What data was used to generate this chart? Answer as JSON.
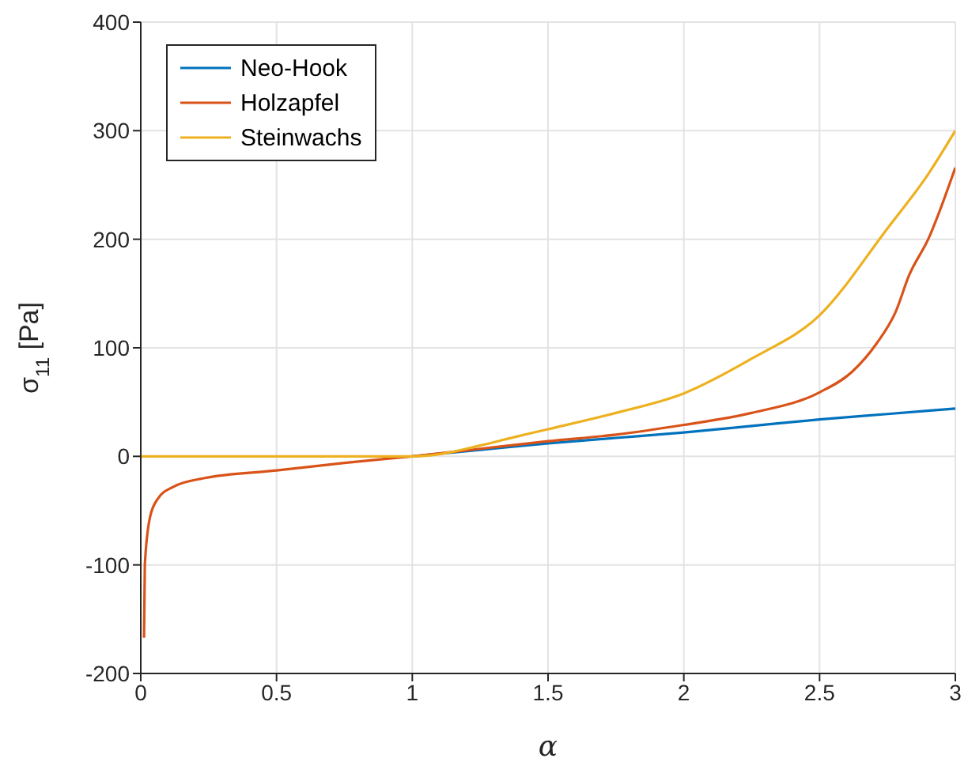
{
  "chart_data": {
    "type": "line",
    "xlabel": "α",
    "ylabel": "σ$_{11}$ [Pa]",
    "xlim": [
      0,
      3
    ],
    "xticks": [
      0,
      0.5,
      1,
      1.5,
      2,
      2.5,
      3
    ],
    "ylim": [
      -200,
      400
    ],
    "yticks": [
      -200,
      -100,
      0,
      100,
      200,
      300,
      400
    ],
    "grid": true,
    "legend": "top left",
    "marker": "none",
    "line_style": "solid",
    "series": [
      {
        "name": "Neo-Hook",
        "color": "#0072bd",
        "x": [
          1,
          1.25,
          1.5,
          1.75,
          2,
          2.25,
          2.5,
          2.75,
          3
        ],
        "values": [
          0,
          6,
          12,
          17,
          22,
          28,
          34,
          39,
          44
        ]
      },
      {
        "name": "Holzapfel",
        "color": "#d95319",
        "x": [
          0.012,
          0.015,
          0.034,
          0.063,
          0.12,
          0.235,
          0.5,
          0.75,
          1,
          1.25,
          1.5,
          1.75,
          2,
          2.25,
          2.5,
          2.62,
          2.71,
          2.78,
          2.83,
          2.9,
          3
        ],
        "values": [
          -167,
          -100,
          -56,
          -39,
          -28,
          -20,
          -13,
          -6,
          0,
          7,
          14,
          20,
          29,
          40,
          59,
          78,
          104,
          133,
          167,
          200,
          266
        ]
      },
      {
        "name": "Steinwachs",
        "color": "#edb120",
        "x": [
          0,
          0.5,
          0.9,
          1,
          1.1,
          1.25,
          1.38,
          1.5,
          1.75,
          2,
          2.25,
          2.5,
          2.75,
          2.9,
          3
        ],
        "values": [
          0,
          0,
          0,
          0,
          2,
          10,
          18,
          25,
          40,
          58,
          90,
          130,
          210,
          260,
          300
        ]
      }
    ]
  }
}
